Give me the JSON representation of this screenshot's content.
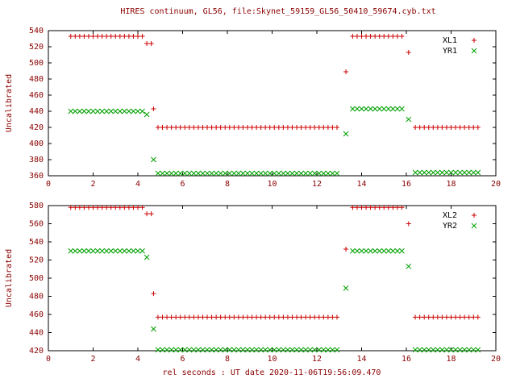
{
  "title": "HIRES continuum, GL56, file:Skynet_59159_GL56_50410_59674.cyb.txt",
  "xlabel": "rel seconds : UT date 2020-11-06T19:56:09.470",
  "colors": {
    "series_red": "#cc0000",
    "series_green": "#00a000",
    "text": "#8b0000",
    "axis": "#000000",
    "legend_text": "#000000",
    "background": "#ffffff"
  },
  "chart_data": [
    {
      "type": "scatter",
      "panel": "top",
      "ylabel": "Uncalibrated",
      "xlim": [
        0,
        20
      ],
      "ylim": [
        360,
        540
      ],
      "xtick_step": 2,
      "ytick_step": 20,
      "grid": false,
      "legend_position": "top-right-inside",
      "series": [
        {
          "name": "XL1",
          "marker": "plus",
          "color": "#cc0000",
          "step": 0.2,
          "segments": [
            [
              1.0,
              4.2,
              533
            ],
            [
              4.4,
              4.6,
              524
            ],
            [
              4.7,
              4.7,
              443
            ],
            [
              4.9,
              13.0,
              420
            ],
            [
              13.3,
              13.3,
              489
            ],
            [
              13.6,
              15.9,
              533
            ],
            [
              16.1,
              16.1,
              513
            ],
            [
              16.4,
              19.3,
              420
            ]
          ]
        },
        {
          "name": "YR1",
          "marker": "cross",
          "color": "#00a000",
          "step": 0.2,
          "segments": [
            [
              1.0,
              4.2,
              440
            ],
            [
              4.4,
              4.4,
              436
            ],
            [
              4.7,
              4.7,
              380
            ],
            [
              4.9,
              13.0,
              363
            ],
            [
              13.3,
              13.3,
              412
            ],
            [
              13.6,
              15.9,
              443
            ],
            [
              16.1,
              16.1,
              430
            ],
            [
              16.4,
              19.3,
              364
            ]
          ]
        }
      ]
    },
    {
      "type": "scatter",
      "panel": "bottom",
      "ylabel": "Uncalibrated",
      "xlim": [
        0,
        20
      ],
      "ylim": [
        420,
        580
      ],
      "xtick_step": 2,
      "ytick_step": 20,
      "grid": false,
      "legend_position": "top-right-inside",
      "series": [
        {
          "name": "XL2",
          "marker": "plus",
          "color": "#cc0000",
          "step": 0.2,
          "segments": [
            [
              1.0,
              4.2,
              578
            ],
            [
              4.4,
              4.6,
              571
            ],
            [
              4.7,
              4.7,
              483
            ],
            [
              4.9,
              13.0,
              457
            ],
            [
              13.3,
              13.3,
              532
            ],
            [
              13.6,
              15.9,
              578
            ],
            [
              16.1,
              16.1,
              560
            ],
            [
              16.4,
              19.3,
              457
            ]
          ]
        },
        {
          "name": "YR2",
          "marker": "cross",
          "color": "#00a000",
          "step": 0.2,
          "segments": [
            [
              1.0,
              4.2,
              530
            ],
            [
              4.4,
              4.4,
              523
            ],
            [
              4.7,
              4.7,
              444
            ],
            [
              4.9,
              13.0,
              421
            ],
            [
              13.3,
              13.3,
              489
            ],
            [
              13.6,
              15.9,
              530
            ],
            [
              16.1,
              16.1,
              513
            ],
            [
              16.4,
              19.3,
              421
            ]
          ]
        }
      ]
    }
  ]
}
